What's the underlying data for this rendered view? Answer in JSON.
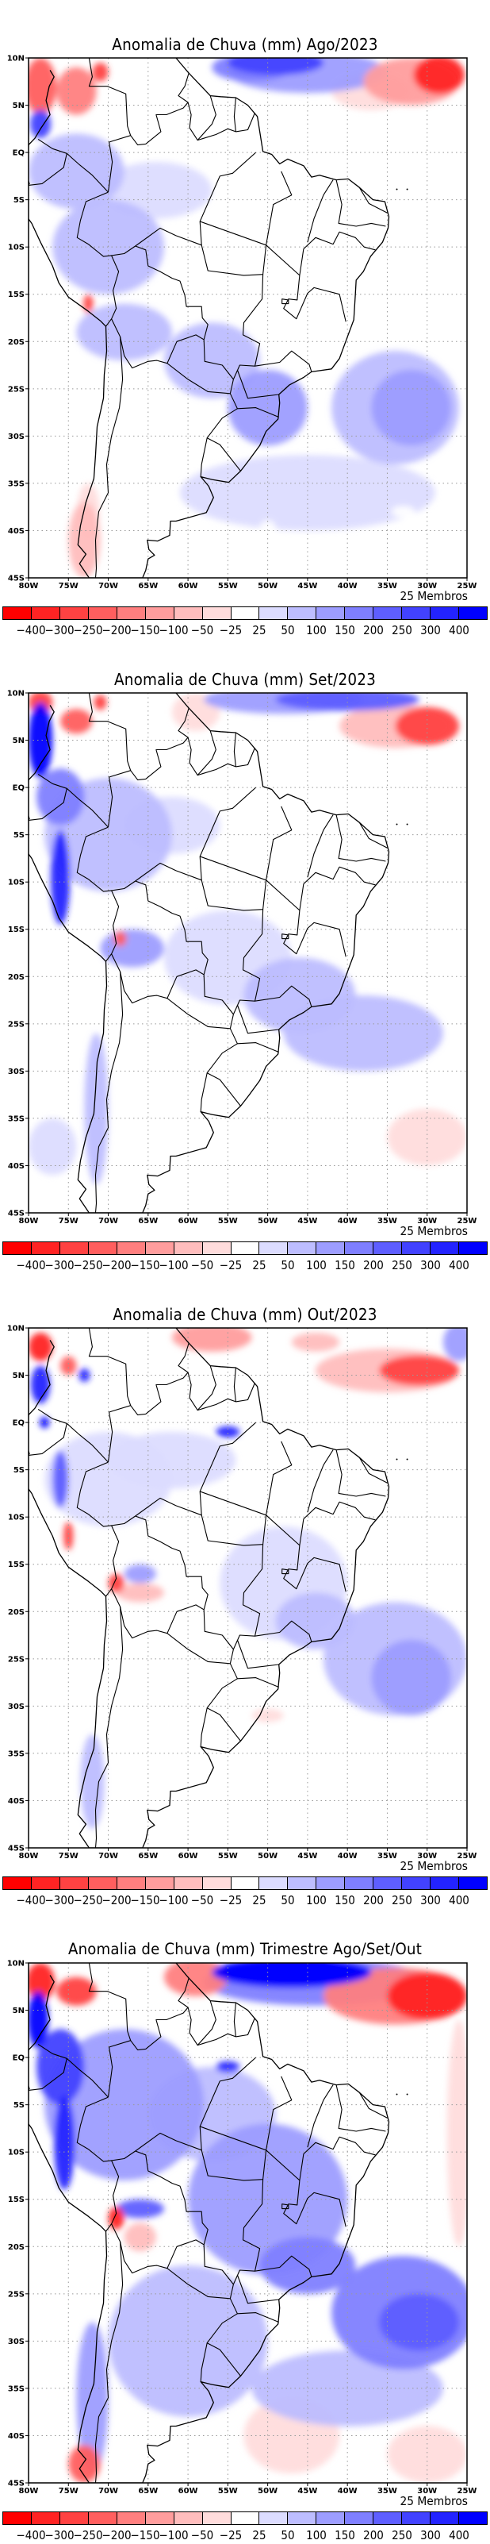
{
  "panels": [
    {
      "title": "Anomalia de Chuva (mm) Ago/2023",
      "members_label": "25 Membros",
      "anomalies": [
        {
          "lon": -28.5,
          "lat": 8.2,
          "rx": 3.2,
          "ry": 2.0,
          "value": -400
        },
        {
          "lon": -32,
          "lat": 7.5,
          "rx": 6,
          "ry": 2.5,
          "value": -150
        },
        {
          "lon": -37,
          "lat": 6.5,
          "rx": 5,
          "ry": 2,
          "value": -50
        },
        {
          "lon": -49,
          "lat": 9.5,
          "rx": 6,
          "ry": 1.3,
          "value": 250
        },
        {
          "lon": -45,
          "lat": 8.5,
          "rx": 10,
          "ry": 2.2,
          "value": 100
        },
        {
          "lon": -52,
          "lat": 9,
          "rx": 5,
          "ry": 1.5,
          "value": 150
        },
        {
          "lon": -78.5,
          "lat": 7,
          "rx": 2,
          "ry": 3,
          "value": -250
        },
        {
          "lon": -74,
          "lat": 6.5,
          "rx": 2.5,
          "ry": 2.5,
          "value": -200
        },
        {
          "lon": -71,
          "lat": 8.5,
          "rx": 1,
          "ry": 1,
          "value": -300
        },
        {
          "lon": -78.5,
          "lat": 3,
          "rx": 1.3,
          "ry": 1.5,
          "value": 250
        },
        {
          "lon": -63,
          "lat": 5,
          "rx": 4,
          "ry": 3,
          "value": -25
        },
        {
          "lon": -56,
          "lat": 3,
          "rx": 3,
          "ry": 3,
          "value": -25
        },
        {
          "lon": -74,
          "lat": -2,
          "rx": 6,
          "ry": 4,
          "value": 50
        },
        {
          "lon": -70,
          "lat": -10,
          "rx": 7,
          "ry": 5,
          "value": 50
        },
        {
          "lon": -64,
          "lat": -4,
          "rx": 7,
          "ry": 3,
          "value": 25
        },
        {
          "lon": -72.5,
          "lat": -16,
          "rx": 0.6,
          "ry": 1,
          "value": -300
        },
        {
          "lon": -68,
          "lat": -19,
          "rx": 6,
          "ry": 3,
          "value": 50
        },
        {
          "lon": -57,
          "lat": -22,
          "rx": 6,
          "ry": 4,
          "value": 50
        },
        {
          "lon": -50,
          "lat": -27,
          "rx": 5,
          "ry": 4,
          "value": 100
        },
        {
          "lon": -34,
          "lat": -27,
          "rx": 8,
          "ry": 6,
          "value": 50
        },
        {
          "lon": -32,
          "lat": -27,
          "rx": 5,
          "ry": 4,
          "value": 100
        },
        {
          "lon": -45,
          "lat": -36,
          "rx": 16,
          "ry": 4,
          "value": 25
        },
        {
          "lon": -73,
          "lat": -41,
          "rx": 2,
          "ry": 4,
          "value": -100
        },
        {
          "lon": -72.5,
          "lat": -38,
          "rx": 1.4,
          "ry": 3,
          "value": -50
        },
        {
          "lon": -50,
          "lat": -40.5,
          "rx": 1.2,
          "ry": 1.6,
          "value": -25
        },
        {
          "lon": -33,
          "lat": -38,
          "rx": 1.5,
          "ry": 0.6,
          "value": -25
        }
      ]
    },
    {
      "title": "Anomalia de Chuva (mm) Set/2023",
      "members_label": "25 Membros",
      "anomalies": [
        {
          "lon": -30,
          "lat": 6.5,
          "rx": 4,
          "ry": 2,
          "value": -300
        },
        {
          "lon": -34,
          "lat": 6.5,
          "rx": 7,
          "ry": 2.3,
          "value": -100
        },
        {
          "lon": -40,
          "lat": 9.3,
          "rx": 9,
          "ry": 1.2,
          "value": 200
        },
        {
          "lon": -48,
          "lat": 9.3,
          "rx": 10,
          "ry": 1.5,
          "value": 100
        },
        {
          "lon": -59,
          "lat": 8,
          "rx": 3,
          "ry": 2,
          "value": -50
        },
        {
          "lon": -78.5,
          "lat": 5,
          "rx": 1.5,
          "ry": 4,
          "value": 400
        },
        {
          "lon": -78.5,
          "lat": 9,
          "rx": 1.5,
          "ry": 1.2,
          "value": -300
        },
        {
          "lon": -74,
          "lat": 7,
          "rx": 2,
          "ry": 1.3,
          "value": -250
        },
        {
          "lon": -71,
          "lat": 9,
          "rx": 0.8,
          "ry": 0.8,
          "value": -300
        },
        {
          "lon": -76,
          "lat": -1,
          "rx": 3,
          "ry": 3,
          "value": 150
        },
        {
          "lon": -76,
          "lat": -9.5,
          "rx": 1.2,
          "ry": 5,
          "value": 300
        },
        {
          "lon": -70,
          "lat": -5,
          "rx": 8,
          "ry": 6,
          "value": 50
        },
        {
          "lon": -62,
          "lat": -4,
          "rx": 6,
          "ry": 3,
          "value": 25
        },
        {
          "lon": -68.5,
          "lat": -16,
          "rx": 0.8,
          "ry": 0.8,
          "value": -250
        },
        {
          "lon": -67,
          "lat": -17,
          "rx": 4,
          "ry": 2,
          "value": 100
        },
        {
          "lon": -55,
          "lat": -18,
          "rx": 8,
          "ry": 5,
          "value": 25
        },
        {
          "lon": -46,
          "lat": -22,
          "rx": 7,
          "ry": 4,
          "value": 50
        },
        {
          "lon": -38,
          "lat": -26,
          "rx": 10,
          "ry": 4,
          "value": 50
        },
        {
          "lon": -71.5,
          "lat": -34,
          "rx": 1.5,
          "ry": 8,
          "value": 50
        },
        {
          "lon": -77,
          "lat": -38,
          "rx": 3,
          "ry": 3,
          "value": 25
        },
        {
          "lon": -45,
          "lat": -38,
          "rx": 8,
          "ry": 3,
          "value": -25
        },
        {
          "lon": -30,
          "lat": -37,
          "rx": 5,
          "ry": 3,
          "value": -50
        },
        {
          "lon": -30,
          "lat": -41,
          "rx": 3,
          "ry": 2,
          "value": -25
        }
      ]
    },
    {
      "title": "Anomalia de Chuva (mm) Out/2023",
      "members_label": "25 Membros",
      "anomalies": [
        {
          "lon": -31,
          "lat": 5.5,
          "rx": 5,
          "ry": 1.6,
          "value": -300
        },
        {
          "lon": -35,
          "lat": 5.5,
          "rx": 9,
          "ry": 2.3,
          "value": -100
        },
        {
          "lon": -57,
          "lat": 9,
          "rx": 5,
          "ry": 1.5,
          "value": -150
        },
        {
          "lon": -44,
          "lat": 8.5,
          "rx": 3,
          "ry": 1,
          "value": -100
        },
        {
          "lon": -26,
          "lat": 8.5,
          "rx": 2,
          "ry": 2,
          "value": 100
        },
        {
          "lon": -78.5,
          "lat": 8,
          "rx": 1.5,
          "ry": 1.5,
          "value": -400
        },
        {
          "lon": -78.5,
          "lat": 4,
          "rx": 1.2,
          "ry": 2,
          "value": 300
        },
        {
          "lon": -75,
          "lat": 6,
          "rx": 1,
          "ry": 1,
          "value": -250
        },
        {
          "lon": -73,
          "lat": 5,
          "rx": 0.7,
          "ry": 0.7,
          "value": 300
        },
        {
          "lon": -78,
          "lat": 0,
          "rx": 0.6,
          "ry": 0.6,
          "value": 400
        },
        {
          "lon": -76,
          "lat": -6,
          "rx": 1,
          "ry": 3,
          "value": 200
        },
        {
          "lon": -75,
          "lat": -12,
          "rx": 0.6,
          "ry": 1.5,
          "value": -300
        },
        {
          "lon": -70,
          "lat": -6,
          "rx": 8,
          "ry": 5,
          "value": 25
        },
        {
          "lon": -55,
          "lat": -1,
          "rx": 1.5,
          "ry": 0.6,
          "value": 300
        },
        {
          "lon": -62,
          "lat": -4,
          "rx": 8,
          "ry": 3,
          "value": 25
        },
        {
          "lon": -69,
          "lat": -17,
          "rx": 1,
          "ry": 1,
          "value": -300
        },
        {
          "lon": -66,
          "lat": -18,
          "rx": 3,
          "ry": 1,
          "value": -100
        },
        {
          "lon": -66,
          "lat": -16,
          "rx": 2,
          "ry": 1,
          "value": 100
        },
        {
          "lon": -48,
          "lat": -17,
          "rx": 8,
          "ry": 6,
          "value": 25
        },
        {
          "lon": -44,
          "lat": -21,
          "rx": 5,
          "ry": 3,
          "value": 50
        },
        {
          "lon": -34,
          "lat": -25,
          "rx": 9,
          "ry": 6,
          "value": 50
        },
        {
          "lon": -32,
          "lat": -27,
          "rx": 5,
          "ry": 4,
          "value": 100
        },
        {
          "lon": -72,
          "lat": -38,
          "rx": 1.5,
          "ry": 5,
          "value": 50
        },
        {
          "lon": -50,
          "lat": -31,
          "rx": 2,
          "ry": 0.7,
          "value": -50
        },
        {
          "lon": -44,
          "lat": -33,
          "rx": 8,
          "ry": 1.5,
          "value": -25
        },
        {
          "lon": -45,
          "lat": -38,
          "rx": 8,
          "ry": 2,
          "value": -25
        },
        {
          "lon": -35,
          "lat": -42,
          "rx": 8,
          "ry": 2.5,
          "value": -25
        }
      ]
    },
    {
      "title": "Anomalia de Chuva (mm) Trimestre Ago/Set/Out",
      "members_label": "25 Membros",
      "anomalies": [
        {
          "lon": -30,
          "lat": 6.5,
          "rx": 5,
          "ry": 2.5,
          "value": -400
        },
        {
          "lon": -34,
          "lat": 6.5,
          "rx": 9,
          "ry": 3,
          "value": -200
        },
        {
          "lon": -47,
          "lat": 9,
          "rx": 10,
          "ry": 1.6,
          "value": 400
        },
        {
          "lon": -44,
          "lat": 8,
          "rx": 14,
          "ry": 2.5,
          "value": 150
        },
        {
          "lon": -59,
          "lat": 8.5,
          "rx": 4,
          "ry": 2,
          "value": -200
        },
        {
          "lon": -26,
          "lat": -8,
          "rx": 1.5,
          "ry": 12,
          "value": -50
        },
        {
          "lon": -78.5,
          "lat": 8,
          "rx": 1.8,
          "ry": 2,
          "value": -400
        },
        {
          "lon": -74,
          "lat": 7,
          "rx": 2.5,
          "ry": 1.5,
          "value": -300
        },
        {
          "lon": -78.8,
          "lat": 4,
          "rx": 1.3,
          "ry": 3,
          "value": 400
        },
        {
          "lon": -76,
          "lat": -1,
          "rx": 3,
          "ry": 4,
          "value": 250
        },
        {
          "lon": -75.5,
          "lat": -9,
          "rx": 1.3,
          "ry": 5,
          "value": 300
        },
        {
          "lon": -68,
          "lat": -5,
          "rx": 10,
          "ry": 8,
          "value": 100
        },
        {
          "lon": -57,
          "lat": -6,
          "rx": 8,
          "ry": 5,
          "value": 50
        },
        {
          "lon": -55,
          "lat": -1,
          "rx": 1.5,
          "ry": 0.6,
          "value": 300
        },
        {
          "lon": -69,
          "lat": -17,
          "rx": 1,
          "ry": 1.2,
          "value": -400
        },
        {
          "lon": -66,
          "lat": -19,
          "rx": 2,
          "ry": 1.5,
          "value": -100
        },
        {
          "lon": -66,
          "lat": -16,
          "rx": 3,
          "ry": 1,
          "value": 200
        },
        {
          "lon": -50,
          "lat": -15,
          "rx": 10,
          "ry": 8,
          "value": 100
        },
        {
          "lon": -45,
          "lat": -22,
          "rx": 6,
          "ry": 3,
          "value": 150
        },
        {
          "lon": -33,
          "lat": -27,
          "rx": 9,
          "ry": 6,
          "value": 150
        },
        {
          "lon": -31,
          "lat": -28,
          "rx": 5,
          "ry": 3,
          "value": 200
        },
        {
          "lon": -60,
          "lat": -30,
          "rx": 10,
          "ry": 8,
          "value": 50
        },
        {
          "lon": -72,
          "lat": -36,
          "rx": 2,
          "ry": 8,
          "value": 100
        },
        {
          "lon": -73,
          "lat": -43,
          "rx": 2,
          "ry": 2,
          "value": -250
        },
        {
          "lon": -47,
          "lat": -40,
          "rx": 6,
          "ry": 4,
          "value": -50
        },
        {
          "lon": -30,
          "lat": -42,
          "rx": 5,
          "ry": 3,
          "value": -50
        },
        {
          "lon": -40,
          "lat": -35,
          "rx": 12,
          "ry": 4,
          "value": 50
        }
      ]
    }
  ],
  "axes": {
    "lat_ticks": [
      "10N",
      "5N",
      "EQ",
      "5S",
      "10S",
      "15S",
      "20S",
      "25S",
      "30S",
      "35S",
      "40S",
      "45S"
    ],
    "lat_values": [
      10,
      5,
      0,
      -5,
      -10,
      -15,
      -20,
      -25,
      -30,
      -35,
      -40,
      -45
    ],
    "lon_ticks": [
      "80W",
      "75W",
      "70W",
      "65W",
      "60W",
      "55W",
      "50W",
      "45W",
      "40W",
      "35W",
      "30W",
      "25W"
    ],
    "lon_values": [
      -80,
      -75,
      -70,
      -65,
      -60,
      -55,
      -50,
      -45,
      -40,
      -35,
      -30,
      -25
    ]
  },
  "colorbar": {
    "labels": [
      "-400",
      "-300",
      "-250",
      "-200",
      "-150",
      "-100",
      "-50",
      "-25",
      "25",
      "50",
      "100",
      "150",
      "200",
      "250",
      "300",
      "400"
    ],
    "colors": [
      "#ff0000",
      "#ff2323",
      "#ff4242",
      "#ff5e5e",
      "#ff7f7f",
      "#ff9d9d",
      "#ffbdbd",
      "#ffdcdc",
      "#ffffff",
      "#dcdcff",
      "#bdbdff",
      "#9d9dff",
      "#7f7fff",
      "#5e5eff",
      "#4242ff",
      "#2323ff",
      "#0000ff"
    ],
    "thresholds": [
      -400,
      -300,
      -250,
      -200,
      -150,
      -100,
      -50,
      -25,
      25,
      50,
      100,
      150,
      200,
      250,
      300,
      400
    ]
  }
}
